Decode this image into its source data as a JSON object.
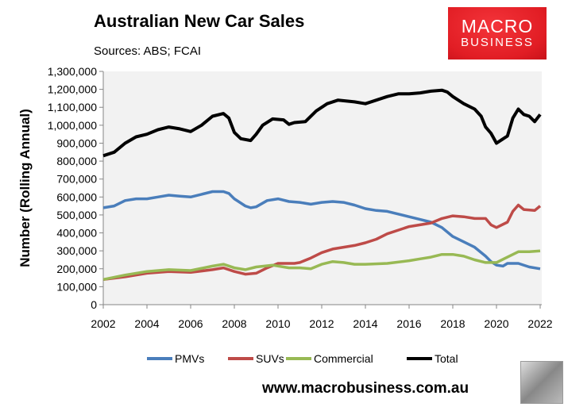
{
  "header": {
    "title": "Australian New Car Sales",
    "subtitle": "Sources: ABS; FCAI"
  },
  "logo": {
    "line1": "MACRO",
    "line2": "BUSINESS"
  },
  "footer": {
    "url": "www.macrobusiness.com.au"
  },
  "chart_data": {
    "type": "line",
    "title": "Australian New Car Sales",
    "subtitle": "Sources: ABS; FCAI",
    "xlabel": "",
    "ylabel": "Number (Rolling Annual)",
    "xlim": [
      2002,
      2022
    ],
    "ylim": [
      0,
      1300000
    ],
    "xticks": [
      "2002",
      "2004",
      "2006",
      "2008",
      "2010",
      "2012",
      "2014",
      "2016",
      "2018",
      "2020",
      "2022"
    ],
    "yticks": [
      "0",
      "100,000",
      "200,000",
      "300,000",
      "400,000",
      "500,000",
      "600,000",
      "700,000",
      "800,000",
      "900,000",
      "1,000,000",
      "1,100,000",
      "1,200,000",
      "1,300,000"
    ],
    "grid": false,
    "legend": "bottom",
    "plot_background": "#f2f2f2",
    "series": [
      {
        "name": "PMVs",
        "color": "#4a7ebb",
        "x": [
          2002,
          2002.5,
          2003,
          2003.5,
          2004,
          2004.5,
          2005,
          2005.5,
          2006,
          2006.5,
          2007,
          2007.5,
          2007.75,
          2008,
          2008.5,
          2008.75,
          2009,
          2009.5,
          2010,
          2010.5,
          2011,
          2011.5,
          2012,
          2012.5,
          2013,
          2013.5,
          2014,
          2014.5,
          2015,
          2015.5,
          2016,
          2016.5,
          2017,
          2017.5,
          2018,
          2018.5,
          2019,
          2019.5,
          2019.75,
          2020,
          2020.3,
          2020.5,
          2021,
          2021.5,
          2022
        ],
        "y": [
          540000,
          550000,
          580000,
          590000,
          590000,
          600000,
          610000,
          605000,
          600000,
          615000,
          630000,
          630000,
          620000,
          590000,
          550000,
          540000,
          545000,
          580000,
          590000,
          575000,
          570000,
          560000,
          570000,
          575000,
          570000,
          555000,
          535000,
          525000,
          520000,
          505000,
          490000,
          475000,
          460000,
          430000,
          380000,
          350000,
          320000,
          270000,
          240000,
          220000,
          215000,
          230000,
          230000,
          210000,
          200000
        ]
      },
      {
        "name": "SUVs",
        "color": "#be4b48",
        "x": [
          2002,
          2003,
          2004,
          2005,
          2006,
          2007,
          2007.5,
          2008,
          2008.5,
          2009,
          2009.5,
          2010,
          2010.75,
          2011,
          2011.5,
          2012,
          2012.5,
          2013,
          2013.5,
          2014,
          2014.5,
          2015,
          2015.5,
          2016,
          2016.5,
          2017,
          2017.5,
          2018,
          2018.5,
          2019,
          2019.5,
          2019.75,
          2020,
          2020.5,
          2020.75,
          2021,
          2021.25,
          2021.75,
          2022
        ],
        "y": [
          140000,
          155000,
          175000,
          185000,
          180000,
          195000,
          205000,
          185000,
          170000,
          175000,
          205000,
          230000,
          230000,
          235000,
          260000,
          290000,
          310000,
          320000,
          330000,
          345000,
          365000,
          395000,
          415000,
          435000,
          445000,
          455000,
          480000,
          495000,
          490000,
          480000,
          480000,
          445000,
          430000,
          460000,
          520000,
          555000,
          530000,
          525000,
          550000
        ]
      },
      {
        "name": "Commercial",
        "color": "#98b954",
        "x": [
          2002,
          2003,
          2004,
          2005,
          2006,
          2007,
          2007.5,
          2008,
          2008.5,
          2009,
          2009.75,
          2010.5,
          2011,
          2011.5,
          2012,
          2012.5,
          2013,
          2013.5,
          2014,
          2015,
          2016,
          2016.5,
          2017,
          2017.5,
          2018,
          2018.5,
          2019,
          2019.5,
          2020,
          2020.5,
          2021,
          2021.5,
          2022
        ],
        "y": [
          140000,
          165000,
          185000,
          195000,
          190000,
          215000,
          225000,
          205000,
          195000,
          210000,
          220000,
          205000,
          205000,
          200000,
          225000,
          240000,
          235000,
          225000,
          225000,
          230000,
          245000,
          255000,
          265000,
          280000,
          280000,
          270000,
          250000,
          235000,
          235000,
          265000,
          295000,
          295000,
          300000
        ]
      },
      {
        "name": "Total",
        "color": "#000000",
        "x": [
          2002,
          2002.5,
          2003,
          2003.5,
          2004,
          2004.5,
          2005,
          2005.5,
          2006,
          2006.5,
          2007,
          2007.5,
          2007.75,
          2008,
          2008.3,
          2008.75,
          2009,
          2009.3,
          2009.75,
          2010.25,
          2010.5,
          2010.75,
          2011.25,
          2011.75,
          2012.25,
          2012.75,
          2013.5,
          2014,
          2014.5,
          2015,
          2015.5,
          2016,
          2016.5,
          2017,
          2017.5,
          2017.75,
          2018,
          2018.5,
          2019,
          2019.3,
          2019.5,
          2019.75,
          2020,
          2020.25,
          2020.5,
          2020.75,
          2021,
          2021.25,
          2021.5,
          2021.75,
          2022
        ],
        "y": [
          830000,
          850000,
          900000,
          935000,
          950000,
          975000,
          990000,
          980000,
          965000,
          1000000,
          1050000,
          1065000,
          1040000,
          960000,
          925000,
          915000,
          950000,
          1000000,
          1035000,
          1030000,
          1005000,
          1015000,
          1020000,
          1080000,
          1120000,
          1140000,
          1130000,
          1120000,
          1140000,
          1160000,
          1175000,
          1175000,
          1180000,
          1190000,
          1195000,
          1185000,
          1160000,
          1120000,
          1090000,
          1050000,
          990000,
          955000,
          900000,
          920000,
          940000,
          1040000,
          1090000,
          1060000,
          1050000,
          1020000,
          1060000
        ]
      }
    ]
  }
}
